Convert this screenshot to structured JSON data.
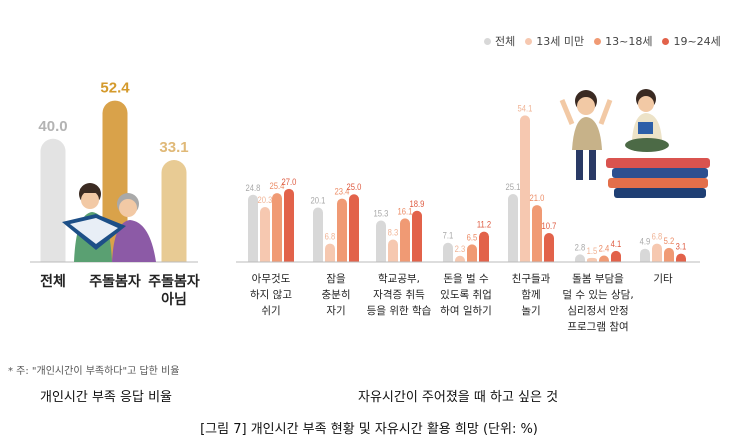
{
  "legend": {
    "items": [
      {
        "label": "전체",
        "color": "#d8d8d8"
      },
      {
        "label": "13세 미만",
        "color": "#f6c8b0"
      },
      {
        "label": "13~18세",
        "color": "#f09a74"
      },
      {
        "label": "19~24세",
        "color": "#e2624a"
      }
    ]
  },
  "footnote": "* 주: \"개인시간이 부족하다\"고 답한 비율",
  "captions": {
    "left": "개인시간 부족 응답 비율",
    "right": "자유시간이 주어졌을 때 하고 싶은 것"
  },
  "figure_title": "[그림 7] 개인시간 부족 현황 및 자유시간 활용 희망 (단위: %)",
  "chart_data": [
    {
      "type": "bar",
      "categories": [
        "전체",
        "주돌봄자",
        "주돌봄자\n아님"
      ],
      "values": [
        40.0,
        52.4,
        33.1
      ],
      "colors": [
        "#e3e3e3",
        "#d9a24a",
        "#e8cb94"
      ],
      "value_label_colors": [
        "#b3b3b3",
        "#d49a2c",
        "#e0b978"
      ],
      "ylim": [
        0,
        60
      ]
    },
    {
      "type": "bar",
      "categories": [
        "아무것도\n하지 않고\n쉬기",
        "잠을\n충분히\n자기",
        "학교공부,\n자격증 취득\n등을 위한 학습",
        "돈을 벌 수\n있도록 취업\n하여 일하기",
        "친구들과\n함께\n놀기",
        "돌봄 부담을\n덜 수 있는 상담,\n심리정서 안정\n프로그램 참여",
        "기타"
      ],
      "series": [
        {
          "name": "전체",
          "values": [
            24.8,
            20.1,
            15.3,
            7.1,
            25.1,
            2.8,
            4.9
          ]
        },
        {
          "name": "13세 미만",
          "values": [
            20.3,
            6.8,
            8.3,
            2.3,
            54.1,
            1.5,
            6.8
          ]
        },
        {
          "name": "13~18세",
          "values": [
            25.4,
            23.4,
            16.1,
            6.5,
            21.0,
            2.4,
            5.2
          ]
        },
        {
          "name": "19~24세",
          "values": [
            27.0,
            25.0,
            18.9,
            11.2,
            10.7,
            4.1,
            3.1
          ]
        }
      ],
      "colors": [
        "#d8d8d8",
        "#f6c8b0",
        "#f09a74",
        "#e2624a"
      ],
      "ylim": [
        0,
        60
      ]
    }
  ]
}
